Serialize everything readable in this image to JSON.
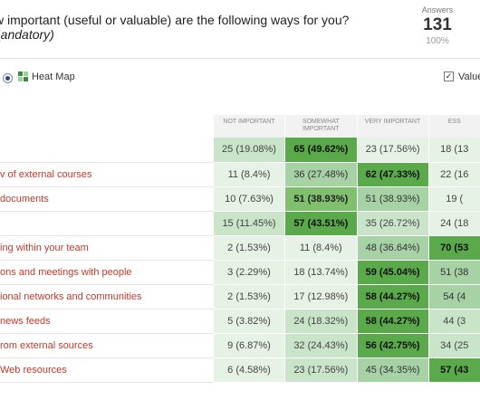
{
  "question": {
    "title": "w important (useful or valuable) are the following ways for you?",
    "subtitle": "andatory)"
  },
  "answers": {
    "label": "Answers",
    "count": "131",
    "percent": "100%"
  },
  "toolbar": {
    "view_label": "Heat Map",
    "values_label": "Values"
  },
  "table": {
    "columns": [
      "NOT IMPORTANT",
      "SOMEWHAT IMPORTANT",
      "VERY IMPORTANT",
      "ESS"
    ],
    "rows": [
      {
        "label": "",
        "cells": [
          {
            "text": "25 (19.08%)",
            "level": 2
          },
          {
            "text": "65 (49.62%)",
            "level": 5
          },
          {
            "text": "23 (17.56%)",
            "level": 1
          },
          {
            "text": "18 (13",
            "level": 1
          }
        ]
      },
      {
        "label": "v of external courses",
        "cells": [
          {
            "text": "11 (8.4%)",
            "level": 1
          },
          {
            "text": "36 (27.48%)",
            "level": 3
          },
          {
            "text": "62 (47.33%)",
            "level": 5
          },
          {
            "text": "22 (16",
            "level": 1
          }
        ]
      },
      {
        "label": "documents",
        "cells": [
          {
            "text": "10 (7.63%)",
            "level": 1
          },
          {
            "text": "51 (38.93%)",
            "level": 4
          },
          {
            "text": "51 (38.93%)",
            "level": 3
          },
          {
            "text": "19 (",
            "level": 1
          }
        ]
      },
      {
        "label": "",
        "cells": [
          {
            "text": "15 (11.45%)",
            "level": 2
          },
          {
            "text": "57 (43.51%)",
            "level": 5
          },
          {
            "text": "35 (26.72%)",
            "level": 2
          },
          {
            "text": "24 (18",
            "level": 1
          }
        ]
      },
      {
        "label": "ing within your team",
        "cells": [
          {
            "text": "2 (1.53%)",
            "level": 1
          },
          {
            "text": "11 (8.4%)",
            "level": 1
          },
          {
            "text": "48 (36.64%)",
            "level": 3
          },
          {
            "text": "70 (53",
            "level": 5
          }
        ]
      },
      {
        "label": "ons and meetings with people",
        "cells": [
          {
            "text": "3 (2.29%)",
            "level": 1
          },
          {
            "text": "18 (13.74%)",
            "level": 1
          },
          {
            "text": "59 (45.04%)",
            "level": 5
          },
          {
            "text": "51 (38",
            "level": 3
          }
        ]
      },
      {
        "label": "ional networks and communities",
        "cells": [
          {
            "text": "2 (1.53%)",
            "level": 1
          },
          {
            "text": "17 (12.98%)",
            "level": 1
          },
          {
            "text": "58 (44.27%)",
            "level": 5
          },
          {
            "text": "54 (4",
            "level": 3
          }
        ]
      },
      {
        "label": "news feeds",
        "cells": [
          {
            "text": "5 (3.82%)",
            "level": 1
          },
          {
            "text": "24 (18.32%)",
            "level": 2
          },
          {
            "text": "58 (44.27%)",
            "level": 5
          },
          {
            "text": "44 (3",
            "level": 2
          }
        ]
      },
      {
        "label": "rom external sources",
        "cells": [
          {
            "text": "9 (6.87%)",
            "level": 1
          },
          {
            "text": "32 (24.43%)",
            "level": 2
          },
          {
            "text": "56 (42.75%)",
            "level": 5
          },
          {
            "text": "34 (25",
            "level": 2
          }
        ]
      },
      {
        "label": "Web resources",
        "cells": [
          {
            "text": "6 (4.58%)",
            "level": 1
          },
          {
            "text": "23 (17.56%)",
            "level": 2
          },
          {
            "text": "45 (34.35%)",
            "level": 3
          },
          {
            "text": "57 (43",
            "level": 5
          }
        ]
      }
    ]
  }
}
